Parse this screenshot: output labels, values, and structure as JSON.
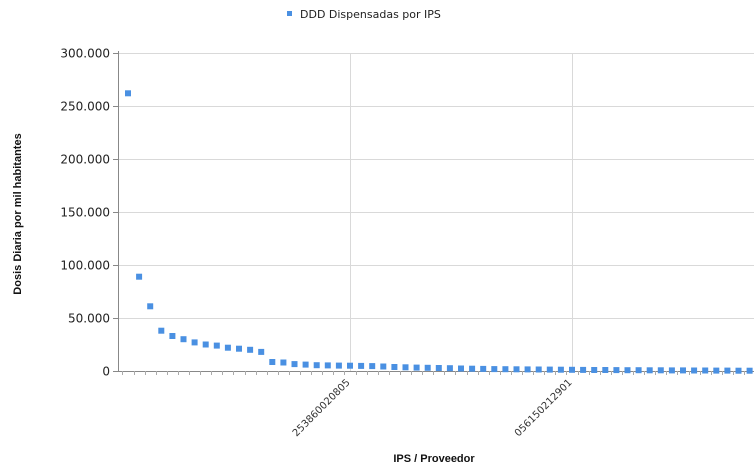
{
  "chart_data": {
    "type": "scatter",
    "xlabel": "IPS / Proveedor",
    "ylabel": "Dosis Diaria por mil habitantes",
    "ylim": [
      0,
      300000
    ],
    "y_ticks": [
      0,
      50000,
      100000,
      150000,
      200000,
      250000,
      300000
    ],
    "y_tick_labels": [
      "0",
      "50.000",
      "100.000",
      "150.000",
      "200.000",
      "250.000",
      "300.000"
    ],
    "x_tick_labels": [
      {
        "label": "253860020805",
        "index": 20
      },
      {
        "label": "056150212901",
        "index": 40
      }
    ],
    "grid": true,
    "legend_position": "top",
    "series": [
      {
        "name": "DDD Dispensadas por IPS",
        "color": "#4a90e2",
        "values": [
          262000,
          89000,
          61000,
          38000,
          33000,
          30000,
          27000,
          25000,
          24000,
          22000,
          21000,
          20000,
          18000,
          8500,
          8000,
          6500,
          6000,
          5500,
          5300,
          5100,
          5000,
          4800,
          4600,
          4200,
          3800,
          3500,
          3200,
          3000,
          2800,
          2600,
          2400,
          2200,
          2000,
          1800,
          1700,
          1600,
          1500,
          1400,
          1300,
          1200,
          1100,
          1000,
          950,
          900,
          850,
          800,
          750,
          700,
          650,
          600,
          550,
          500,
          450,
          400,
          350,
          300,
          250,
          200
        ]
      }
    ]
  }
}
